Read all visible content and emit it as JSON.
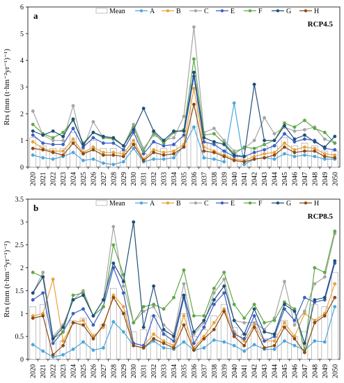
{
  "chart_data": [
    {
      "type": "line",
      "panel_label": "a",
      "scenario": "RCP4.5",
      "ylabel": "Rrs (mm (t·hm⁻²yr⁻¹)⁻¹)",
      "ylim": [
        0,
        6
      ],
      "yticks": [
        "0",
        "1",
        "2",
        "3",
        "4",
        "5",
        "6"
      ],
      "categories": [
        "2020",
        "2021",
        "2022",
        "2023",
        "2024",
        "2025",
        "2026",
        "2027",
        "2028",
        "2029",
        "2030",
        "2031",
        "2032",
        "2033",
        "2034",
        "2035",
        "2036",
        "2037",
        "2038",
        "2039",
        "2040",
        "2041",
        "2042",
        "2043",
        "2044",
        "2045",
        "2046",
        "2047",
        "2048",
        "2049",
        "2050"
      ],
      "legend": [
        "Mean",
        "A",
        "B",
        "C",
        "E",
        "F",
        "G",
        "H"
      ],
      "bar_series": {
        "name": "Mean",
        "values": [
          1.1,
          0.8,
          0.7,
          0.7,
          1.3,
          0.6,
          1.0,
          0.7,
          0.7,
          0.6,
          1.2,
          0.5,
          0.9,
          0.7,
          0.8,
          1.1,
          3.1,
          0.9,
          0.9,
          0.6,
          0.5,
          0.4,
          0.7,
          0.8,
          0.8,
          1.1,
          0.8,
          0.9,
          0.8,
          0.6,
          0.6
        ]
      },
      "series": [
        {
          "name": "A",
          "values": [
            0.45,
            0.35,
            0.3,
            0.4,
            0.55,
            0.25,
            0.3,
            0.15,
            0.1,
            0.2,
            0.7,
            0.2,
            0.3,
            0.3,
            0.35,
            0.8,
            1.5,
            0.35,
            0.3,
            0.2,
            2.4,
            0.1,
            0.3,
            0.35,
            0.3,
            0.5,
            0.4,
            0.45,
            0.4,
            0.3,
            0.3
          ]
        },
        {
          "name": "B",
          "values": [
            0.95,
            0.7,
            0.6,
            0.6,
            1.05,
            0.55,
            0.75,
            0.55,
            0.55,
            0.5,
            1.0,
            0.3,
            0.65,
            0.55,
            0.6,
            0.85,
            2.95,
            0.75,
            0.6,
            0.45,
            0.3,
            0.25,
            0.4,
            0.5,
            0.55,
            0.9,
            0.65,
            0.75,
            0.7,
            0.5,
            0.45
          ]
        },
        {
          "name": "C",
          "values": [
            2.1,
            1.2,
            1.0,
            1.0,
            2.3,
            0.7,
            1.7,
            1.1,
            1.1,
            0.8,
            1.6,
            0.7,
            1.2,
            1.0,
            1.1,
            1.9,
            5.25,
            1.3,
            1.45,
            1.0,
            0.6,
            0.7,
            1.0,
            1.85,
            1.25,
            1.5,
            1.35,
            1.4,
            1.5,
            1.05,
            0.9
          ]
        },
        {
          "name": "E",
          "values": [
            1.2,
            0.9,
            0.85,
            0.85,
            1.45,
            0.75,
            1.1,
            0.9,
            0.9,
            0.65,
            1.3,
            0.5,
            0.95,
            0.8,
            0.85,
            1.2,
            3.4,
            0.95,
            0.85,
            0.6,
            0.4,
            0.4,
            0.55,
            0.65,
            0.8,
            1.25,
            0.95,
            1.05,
            1.0,
            0.7,
            0.65
          ]
        },
        {
          "name": "F",
          "values": [
            1.6,
            1.25,
            1.1,
            1.3,
            1.75,
            0.9,
            1.3,
            1.1,
            1.05,
            0.8,
            1.5,
            0.6,
            1.3,
            0.9,
            1.3,
            1.4,
            4.05,
            1.2,
            1.25,
            0.9,
            0.5,
            0.75,
            0.7,
            0.85,
            1.0,
            1.65,
            1.5,
            1.75,
            1.45,
            1.3,
            0.9
          ]
        },
        {
          "name": "G",
          "values": [
            1.35,
            1.2,
            1.35,
            1.15,
            1.8,
            0.85,
            1.3,
            1.15,
            1.1,
            0.8,
            1.4,
            2.2,
            1.35,
            1.0,
            1.35,
            1.35,
            3.55,
            1.1,
            0.95,
            0.85,
            0.45,
            0.4,
            3.1,
            1.0,
            1.0,
            1.55,
            1.05,
            1.2,
            0.95,
            0.75,
            1.15
          ]
        },
        {
          "name": "H",
          "values": [
            0.7,
            0.65,
            0.55,
            0.45,
            0.9,
            0.5,
            0.65,
            0.45,
            0.45,
            0.4,
            0.85,
            0.25,
            0.55,
            0.45,
            0.5,
            0.75,
            2.35,
            0.6,
            0.55,
            0.4,
            0.25,
            0.2,
            0.3,
            0.35,
            0.45,
            0.75,
            0.55,
            0.6,
            0.6,
            0.4,
            0.35
          ]
        }
      ]
    },
    {
      "type": "line",
      "panel_label": "b",
      "scenario": "RCP8.5",
      "ylabel": "Rrs (mm (t·hm⁻²yr⁻¹)⁻¹)",
      "ylim": [
        0,
        3.5
      ],
      "yticks": [
        "0",
        "0.5",
        "1",
        "1.5",
        "2",
        "2.5",
        "3",
        "3.5"
      ],
      "categories": [
        "2020",
        "2021",
        "2022",
        "2023",
        "2024",
        "2025",
        "2026",
        "2027",
        "2028",
        "2029",
        "2030",
        "2031",
        "2032",
        "2033",
        "2034",
        "2035",
        "2036",
        "2037",
        "2038",
        "2039",
        "2040",
        "2041",
        "2042",
        "2043",
        "2044",
        "2045",
        "2046",
        "2047",
        "2048",
        "2049",
        "2050"
      ],
      "legend": [
        "Mean",
        "A",
        "B",
        "C",
        "E",
        "F",
        "G",
        "H"
      ],
      "bar_series": {
        "name": "Mean",
        "values": [
          1.15,
          1.2,
          0.4,
          0.4,
          0.85,
          0.9,
          0.55,
          0.75,
          1.55,
          1.05,
          0.6,
          0.65,
          0.95,
          0.6,
          0.45,
          1.0,
          0.5,
          0.65,
          0.95,
          1.2,
          0.7,
          0.55,
          0.75,
          0.45,
          0.55,
          0.85,
          0.5,
          0.6,
          1.2,
          1.15,
          1.9
        ]
      },
      "series": [
        {
          "name": "A",
          "values": [
            0.32,
            0.18,
            0.05,
            0.1,
            0.22,
            0.38,
            0.2,
            0.25,
            0.82,
            0.6,
            0.3,
            0.25,
            0.4,
            0.25,
            0.22,
            0.38,
            0.2,
            0.25,
            0.42,
            0.38,
            0.3,
            0.18,
            0.32,
            0.22,
            0.22,
            0.4,
            0.3,
            0.2,
            0.4,
            0.38,
            1.15
          ]
        },
        {
          "name": "B",
          "values": [
            0.95,
            1.0,
            1.75,
            0.4,
            0.8,
            0.85,
            0.5,
            0.7,
            1.4,
            1.15,
            0.35,
            0.3,
            0.55,
            0.4,
            0.3,
            0.95,
            0.25,
            0.5,
            0.8,
            1.1,
            0.6,
            0.4,
            0.75,
            0.4,
            0.4,
            0.8,
            0.5,
            1.0,
            0.85,
            1.0,
            1.65
          ]
        },
        {
          "name": "C",
          "values": [
            1.45,
            1.9,
            0.5,
            0.75,
            1.3,
            1.5,
            0.95,
            1.3,
            2.9,
            1.6,
            0.8,
            1.05,
            1.15,
            0.75,
            0.55,
            1.65,
            0.55,
            0.8,
            1.45,
            1.75,
            0.85,
            0.8,
            0.8,
            0.65,
            0.9,
            1.7,
            0.75,
            1.05,
            1.65,
            1.8,
            2.75
          ]
        },
        {
          "name": "E",
          "values": [
            1.3,
            1.45,
            0.35,
            0.6,
            1.0,
            1.1,
            0.75,
            1.15,
            2.0,
            1.45,
            0.35,
            0.3,
            0.95,
            0.55,
            0.4,
            1.35,
            0.35,
            0.7,
            1.2,
            1.45,
            0.55,
            0.45,
            0.95,
            0.4,
            0.5,
            1.1,
            0.85,
            1.35,
            1.25,
            1.3,
            2.1
          ]
        },
        {
          "name": "F",
          "values": [
            1.9,
            1.8,
            0.45,
            0.6,
            1.4,
            1.45,
            0.95,
            1.15,
            2.5,
            1.85,
            0.8,
            1.15,
            1.2,
            1.1,
            1.35,
            1.95,
            0.95,
            0.95,
            1.55,
            1.9,
            1.2,
            0.9,
            1.2,
            0.8,
            0.85,
            1.25,
            1.1,
            0.2,
            2.0,
            1.9,
            2.8
          ]
        },
        {
          "name": "G",
          "values": [
            1.45,
            1.8,
            0.45,
            0.7,
            1.3,
            1.4,
            0.95,
            1.3,
            2.1,
            1.7,
            3.0,
            0.7,
            1.6,
            0.65,
            0.5,
            1.4,
            0.6,
            0.85,
            1.3,
            1.6,
            0.85,
            0.55,
            1.1,
            0.6,
            0.55,
            1.2,
            1.05,
            0.35,
            1.3,
            1.35,
            2.15
          ]
        },
        {
          "name": "H",
          "values": [
            0.9,
            0.95,
            0.1,
            0.3,
            0.8,
            0.75,
            0.45,
            0.75,
            1.35,
            1.0,
            0.3,
            0.25,
            0.45,
            0.35,
            0.25,
            0.75,
            0.2,
            0.45,
            0.65,
            1.05,
            0.5,
            0.3,
            0.7,
            0.25,
            0.3,
            0.7,
            0.45,
            0.15,
            0.8,
            0.95,
            1.35
          ]
        }
      ]
    }
  ],
  "colors": {
    "A": "#4ea6dc",
    "B": "#e8a33b",
    "C": "#a6a6a6",
    "E": "#3b5fc4",
    "F": "#5fa84a",
    "G": "#1f4e79",
    "H": "#8b4a14",
    "Mean_bar_stroke": "#a6a6a6",
    "Mean_bar_fill": "#ffffff"
  }
}
